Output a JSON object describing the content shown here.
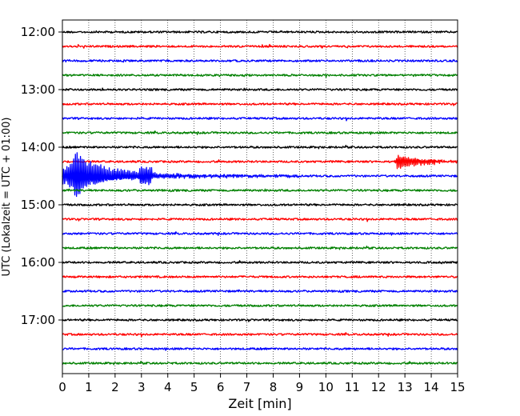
{
  "chart_data": {
    "type": "line",
    "title": "",
    "xlabel": "Zeit  [min]",
    "ylabel": "UTC (Lokalzeit = UTC + 01:00)",
    "xlim": [
      0,
      15
    ],
    "x_ticks": [
      0,
      1,
      2,
      3,
      4,
      5,
      6,
      7,
      8,
      9,
      10,
      11,
      12,
      13,
      14,
      15
    ],
    "y_tick_labels": [
      "12:00",
      "13:00",
      "14:00",
      "15:00",
      "16:00",
      "17:00"
    ],
    "y_tick_trace_index": [
      0,
      4,
      8,
      12,
      16,
      20
    ],
    "grid": "vertical dotted lines at each minute",
    "trace_interval_minutes": 15,
    "trace_count": 24,
    "colors": [
      "#000000",
      "#ff0000",
      "#0000ff",
      "#008000"
    ],
    "traces": [
      {
        "start": "12:00",
        "color": "#000000"
      },
      {
        "start": "12:15",
        "color": "#ff0000"
      },
      {
        "start": "12:30",
        "color": "#0000ff"
      },
      {
        "start": "12:45",
        "color": "#008000"
      },
      {
        "start": "13:00",
        "color": "#000000"
      },
      {
        "start": "13:15",
        "color": "#ff0000"
      },
      {
        "start": "13:30",
        "color": "#0000ff"
      },
      {
        "start": "13:45",
        "color": "#008000"
      },
      {
        "start": "14:00",
        "color": "#000000"
      },
      {
        "start": "14:15",
        "color": "#ff0000",
        "event": {
          "onset_min": 12.6,
          "peak_amplitude": 0.55,
          "duration_min": 2.4
        }
      },
      {
        "start": "14:30",
        "color": "#0000ff",
        "event": {
          "onset_min": 0.0,
          "peak_amplitude": 2.0,
          "duration_min": 9.0
        }
      },
      {
        "start": "14:45",
        "color": "#008000"
      },
      {
        "start": "15:00",
        "color": "#000000"
      },
      {
        "start": "15:15",
        "color": "#ff0000"
      },
      {
        "start": "15:30",
        "color": "#0000ff"
      },
      {
        "start": "15:45",
        "color": "#008000"
      },
      {
        "start": "16:00",
        "color": "#000000"
      },
      {
        "start": "16:15",
        "color": "#ff0000"
      },
      {
        "start": "16:30",
        "color": "#0000ff"
      },
      {
        "start": "16:45",
        "color": "#008000"
      },
      {
        "start": "17:00",
        "color": "#000000"
      },
      {
        "start": "17:15",
        "color": "#ff0000"
      },
      {
        "start": "17:30",
        "color": "#0000ff"
      },
      {
        "start": "17:45",
        "color": "#008000"
      }
    ]
  }
}
